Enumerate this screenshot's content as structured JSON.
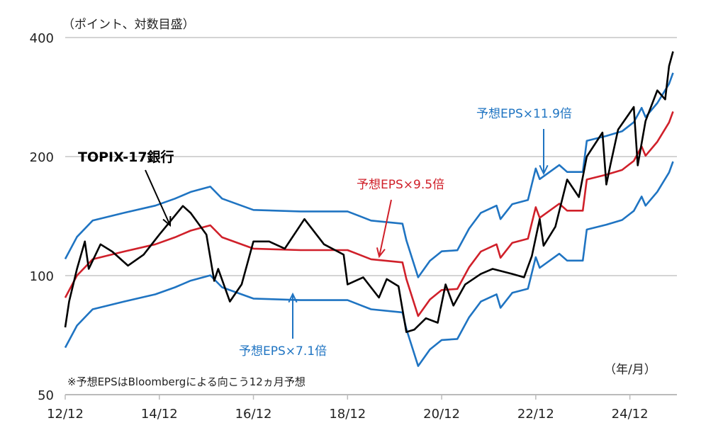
{
  "chart_data": {
    "type": "line",
    "unit_label": "（ポイント、対数目盛）",
    "x_unit_label": "（年/月）",
    "note": "※予想EPSはBloombergによる向こう12ヵ月予想",
    "y_scale": "log",
    "ylim": [
      50,
      400
    ],
    "y_ticks": [
      {
        "v": 400,
        "label": "400"
      },
      {
        "v": 200,
        "label": "200"
      },
      {
        "v": 100,
        "label": "100"
      },
      {
        "v": 50,
        "label": "50"
      }
    ],
    "x_range": [
      "2012/12",
      "2025/12"
    ],
    "x_ticks": [
      {
        "d": "2012/12",
        "label": "12/12"
      },
      {
        "d": "2014/12",
        "label": "14/12"
      },
      {
        "d": "2016/12",
        "label": "16/12"
      },
      {
        "d": "2018/12",
        "label": "18/12"
      },
      {
        "d": "2020/12",
        "label": "20/12"
      },
      {
        "d": "2022/12",
        "label": "22/12"
      },
      {
        "d": "2024/12",
        "label": "24/12"
      }
    ],
    "grid": true,
    "colors": {
      "topix": "#000000",
      "mid": "#d0202a",
      "band": "#1f74c2",
      "grid": "#d4d4d4"
    },
    "topix": {
      "name": "TOPIX-17銀行",
      "points": [
        [
          "2012/12",
          74
        ],
        [
          "2013/01",
          86
        ],
        [
          "2013/03",
          104
        ],
        [
          "2013/05",
          122
        ],
        [
          "2013/06",
          104
        ],
        [
          "2013/09",
          120
        ],
        [
          "2013/12",
          115
        ],
        [
          "2014/04",
          106
        ],
        [
          "2014/08",
          113
        ],
        [
          "2014/12",
          127
        ],
        [
          "2015/03",
          138
        ],
        [
          "2015/06",
          150
        ],
        [
          "2015/08",
          144
        ],
        [
          "2015/12",
          127
        ],
        [
          "2016/02",
          97
        ],
        [
          "2016/03",
          104
        ],
        [
          "2016/06",
          86
        ],
        [
          "2016/09",
          95
        ],
        [
          "2016/12",
          122
        ],
        [
          "2017/04",
          122
        ],
        [
          "2017/08",
          117
        ],
        [
          "2018/01",
          139
        ],
        [
          "2018/06",
          120
        ],
        [
          "2018/11",
          113
        ],
        [
          "2018/12",
          95
        ],
        [
          "2019/04",
          99
        ],
        [
          "2019/08",
          88
        ],
        [
          "2019/10",
          98
        ],
        [
          "2020/01",
          94
        ],
        [
          "2020/03",
          72
        ],
        [
          "2020/05",
          73
        ],
        [
          "2020/08",
          78
        ],
        [
          "2020/11",
          76
        ],
        [
          "2021/01",
          95
        ],
        [
          "2021/03",
          84
        ],
        [
          "2021/06",
          95
        ],
        [
          "2021/10",
          101
        ],
        [
          "2022/01",
          104
        ],
        [
          "2022/06",
          101
        ],
        [
          "2022/09",
          99
        ],
        [
          "2022/11",
          112
        ],
        [
          "2023/01",
          139
        ],
        [
          "2023/02",
          119
        ],
        [
          "2023/05",
          133
        ],
        [
          "2023/08",
          175
        ],
        [
          "2023/11",
          158
        ],
        [
          "2024/01",
          200
        ],
        [
          "2024/05",
          230
        ],
        [
          "2024/06",
          170
        ],
        [
          "2024/07",
          190
        ],
        [
          "2024/09",
          234
        ],
        [
          "2025/01",
          267
        ],
        [
          "2025/02",
          190
        ],
        [
          "2025/04",
          246
        ],
        [
          "2025/07",
          294
        ],
        [
          "2025/09",
          279
        ],
        [
          "2025/10",
          339
        ],
        [
          "2025/11",
          369
        ]
      ]
    },
    "eps": [
      [
        "2012/12",
        9.26
      ],
      [
        "2013/03",
        10.53
      ],
      [
        "2013/07",
        11.58
      ],
      [
        "2014/03",
        12.11
      ],
      [
        "2014/11",
        12.63
      ],
      [
        "2015/04",
        13.16
      ],
      [
        "2015/08",
        13.68
      ],
      [
        "2016/01",
        14.11
      ],
      [
        "2016/04",
        13.16
      ],
      [
        "2016/12",
        12.32
      ],
      [
        "2017/12",
        12.21
      ],
      [
        "2018/12",
        12.21
      ],
      [
        "2019/06",
        11.58
      ],
      [
        "2020/02",
        11.37
      ],
      [
        "2020/03",
        10.32
      ],
      [
        "2020/06",
        8.32
      ],
      [
        "2020/09",
        9.16
      ],
      [
        "2020/12",
        9.68
      ],
      [
        "2021/04",
        9.74
      ],
      [
        "2021/07",
        11.05
      ],
      [
        "2021/10",
        12.11
      ],
      [
        "2022/02",
        12.63
      ],
      [
        "2022/03",
        11.68
      ],
      [
        "2022/06",
        12.74
      ],
      [
        "2022/10",
        13.05
      ],
      [
        "2022/12",
        15.68
      ],
      [
        "2023/01",
        14.74
      ],
      [
        "2023/06",
        16.0
      ],
      [
        "2023/08",
        15.37
      ],
      [
        "2023/12",
        15.37
      ],
      [
        "2024/01",
        18.42
      ],
      [
        "2024/06",
        18.95
      ],
      [
        "2024/10",
        19.47
      ],
      [
        "2025/01",
        20.53
      ],
      [
        "2025/03",
        22.32
      ],
      [
        "2025/04",
        21.16
      ],
      [
        "2025/07",
        22.95
      ],
      [
        "2025/10",
        25.68
      ],
      [
        "2025/11",
        27.37
      ]
    ],
    "series": [
      {
        "name": "予想EPS×11.9倍",
        "multiple": 11.9,
        "color": "band"
      },
      {
        "name": "予想EPS×9.5倍",
        "multiple": 9.5,
        "color": "mid"
      },
      {
        "name": "予想EPS×7.1倍",
        "multiple": 7.1,
        "color": "band"
      }
    ]
  }
}
